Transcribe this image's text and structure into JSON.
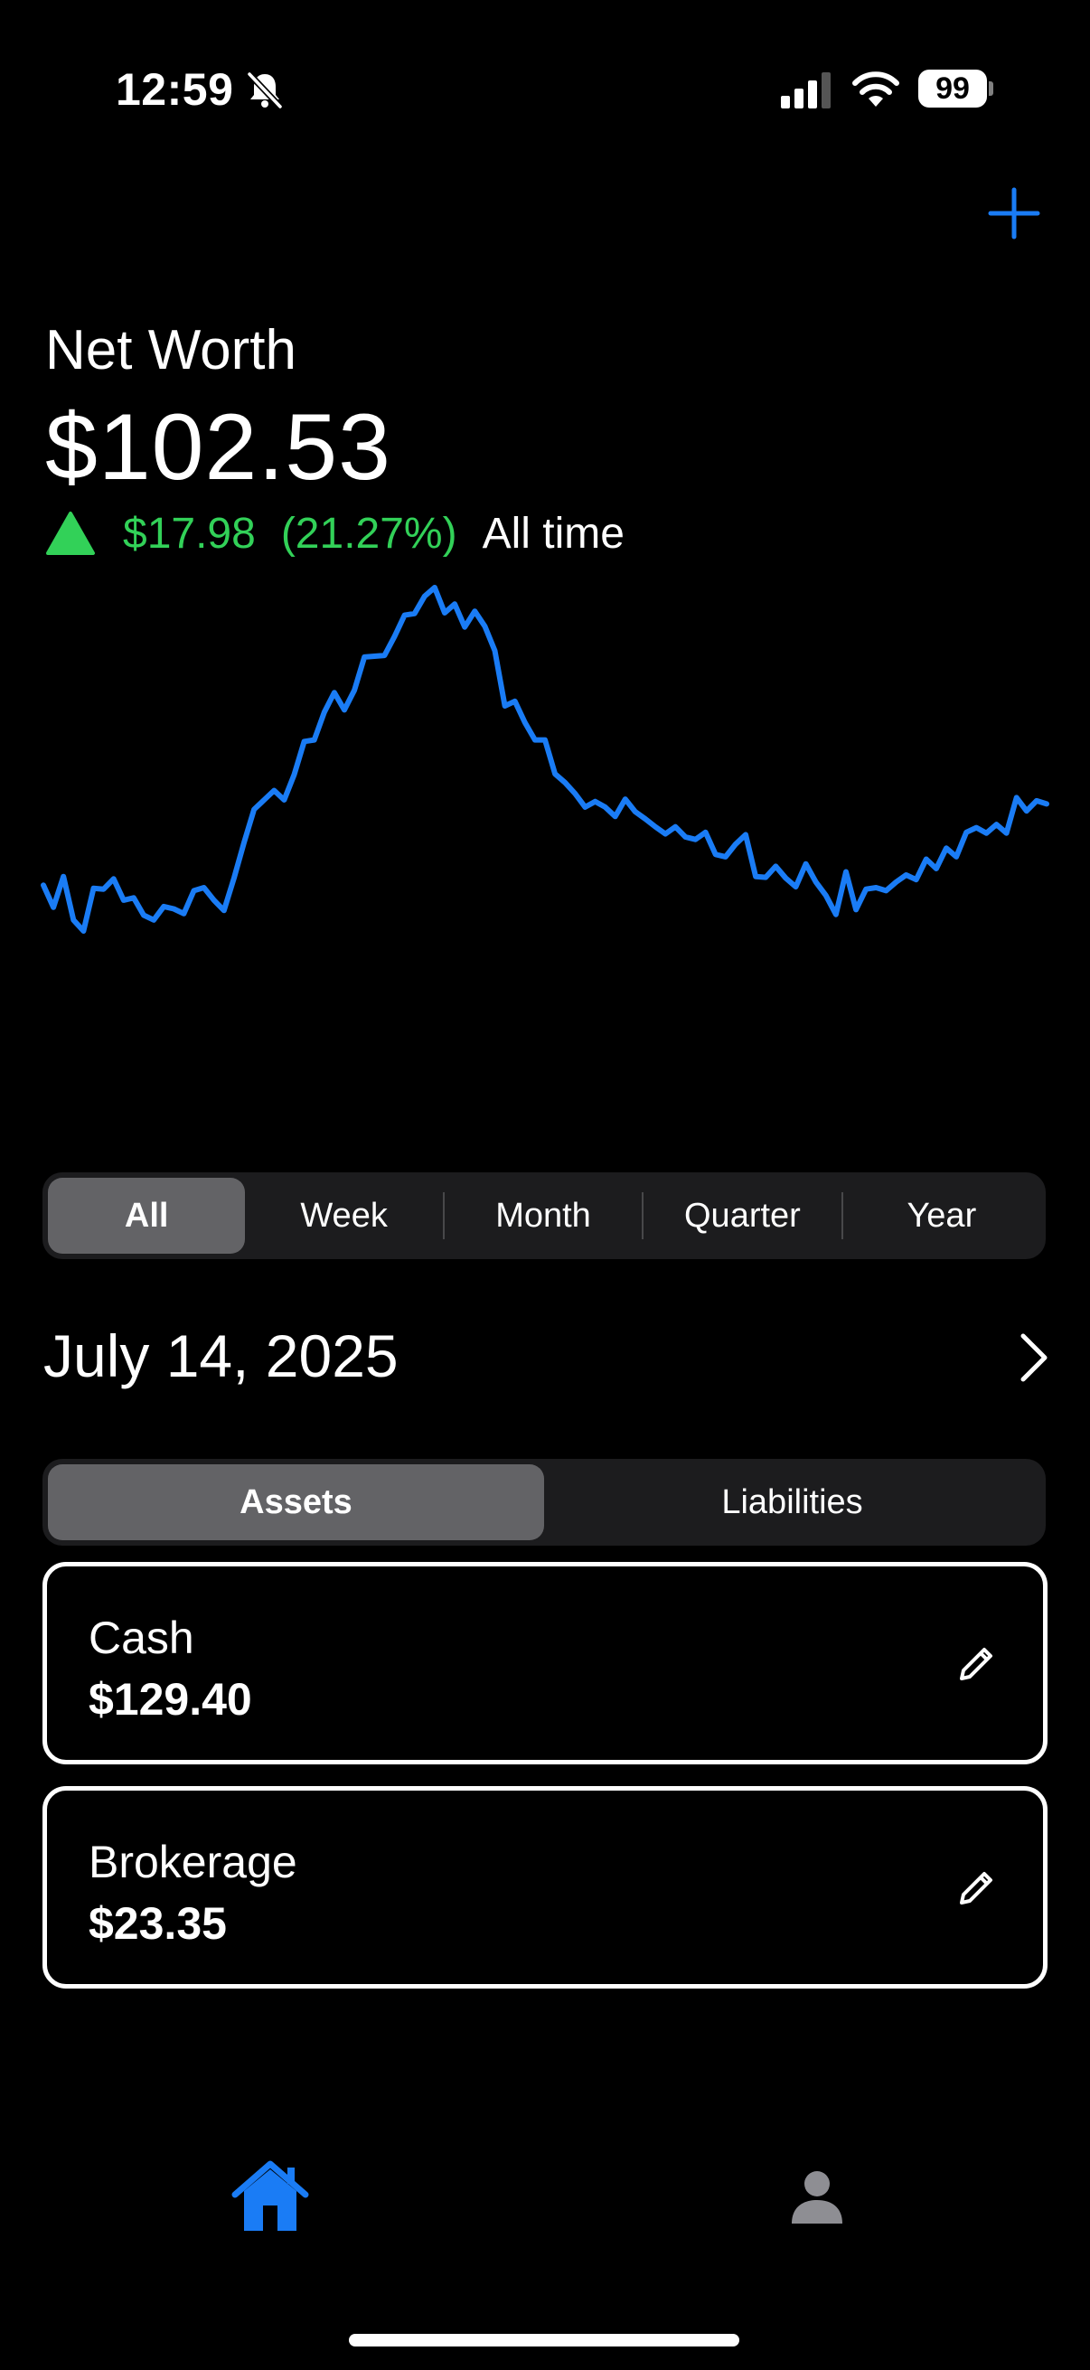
{
  "status_bar": {
    "time": "12:59",
    "battery": "99",
    "icons": [
      "bell-slash-icon",
      "signal-icon",
      "wifi-icon",
      "battery-icon"
    ]
  },
  "header": {
    "add_icon": "plus-icon",
    "accent_color": "#1a7cf5"
  },
  "net_worth": {
    "label": "Net Worth",
    "value": "$102.53",
    "change_amount": "$17.98",
    "change_percent": "(21.27%)",
    "period": "All time",
    "positive_color": "#32d158"
  },
  "chart_data": {
    "type": "line",
    "color": "#1a7cf5",
    "grid": false,
    "values": [
      70.1,
      67.3,
      71.2,
      65.7,
      64.3,
      69.7,
      69.6,
      70.9,
      68.2,
      68.5,
      66.3,
      65.7,
      67.4,
      67.1,
      66.5,
      69.4,
      69.8,
      68.2,
      66.9,
      71.0,
      75.5,
      79.7,
      80.9,
      82.1,
      80.9,
      84.1,
      88.3,
      88.5,
      92.0,
      94.5,
      92.3,
      94.8,
      99.0,
      99.1,
      99.2,
      101.6,
      104.3,
      104.5,
      106.7,
      107.8,
      104.6,
      105.7,
      102.8,
      104.8,
      102.9,
      99.8,
      92.8,
      93.4,
      90.7,
      88.5,
      88.5,
      84.2,
      83.1,
      81.7,
      80.0,
      80.7,
      80.0,
      78.8,
      81.0,
      79.4,
      78.5,
      77.5,
      76.6,
      77.5,
      76.2,
      75.9,
      76.8,
      74.0,
      73.7,
      75.3,
      76.5,
      71.2,
      71.1,
      72.5,
      71.0,
      69.9,
      72.8,
      70.5,
      68.8,
      66.4,
      71.8,
      67.0,
      69.6,
      69.8,
      69.4,
      70.5,
      71.4,
      70.8,
      73.4,
      72.2,
      74.8,
      73.7,
      76.8,
      77.4,
      76.7,
      77.8,
      76.7,
      81.2,
      79.5,
      80.8,
      80.4
    ]
  },
  "range_selector": {
    "options": [
      "All",
      "Week",
      "Month",
      "Quarter",
      "Year"
    ],
    "selected": "All"
  },
  "date": {
    "label": "July 14, 2025",
    "next_icon": "chevron-right-icon"
  },
  "account_type": {
    "options": [
      "Assets",
      "Liabilities"
    ],
    "selected": "Assets"
  },
  "accounts": [
    {
      "name": "Cash",
      "value": "$129.40",
      "icon": "pencil-icon"
    },
    {
      "name": "Brokerage",
      "value": "$23.35",
      "icon": "pencil-icon"
    }
  ],
  "tab_bar": {
    "items": [
      {
        "icon": "house-icon",
        "active": true
      },
      {
        "icon": "person-icon",
        "active": false
      }
    ]
  }
}
